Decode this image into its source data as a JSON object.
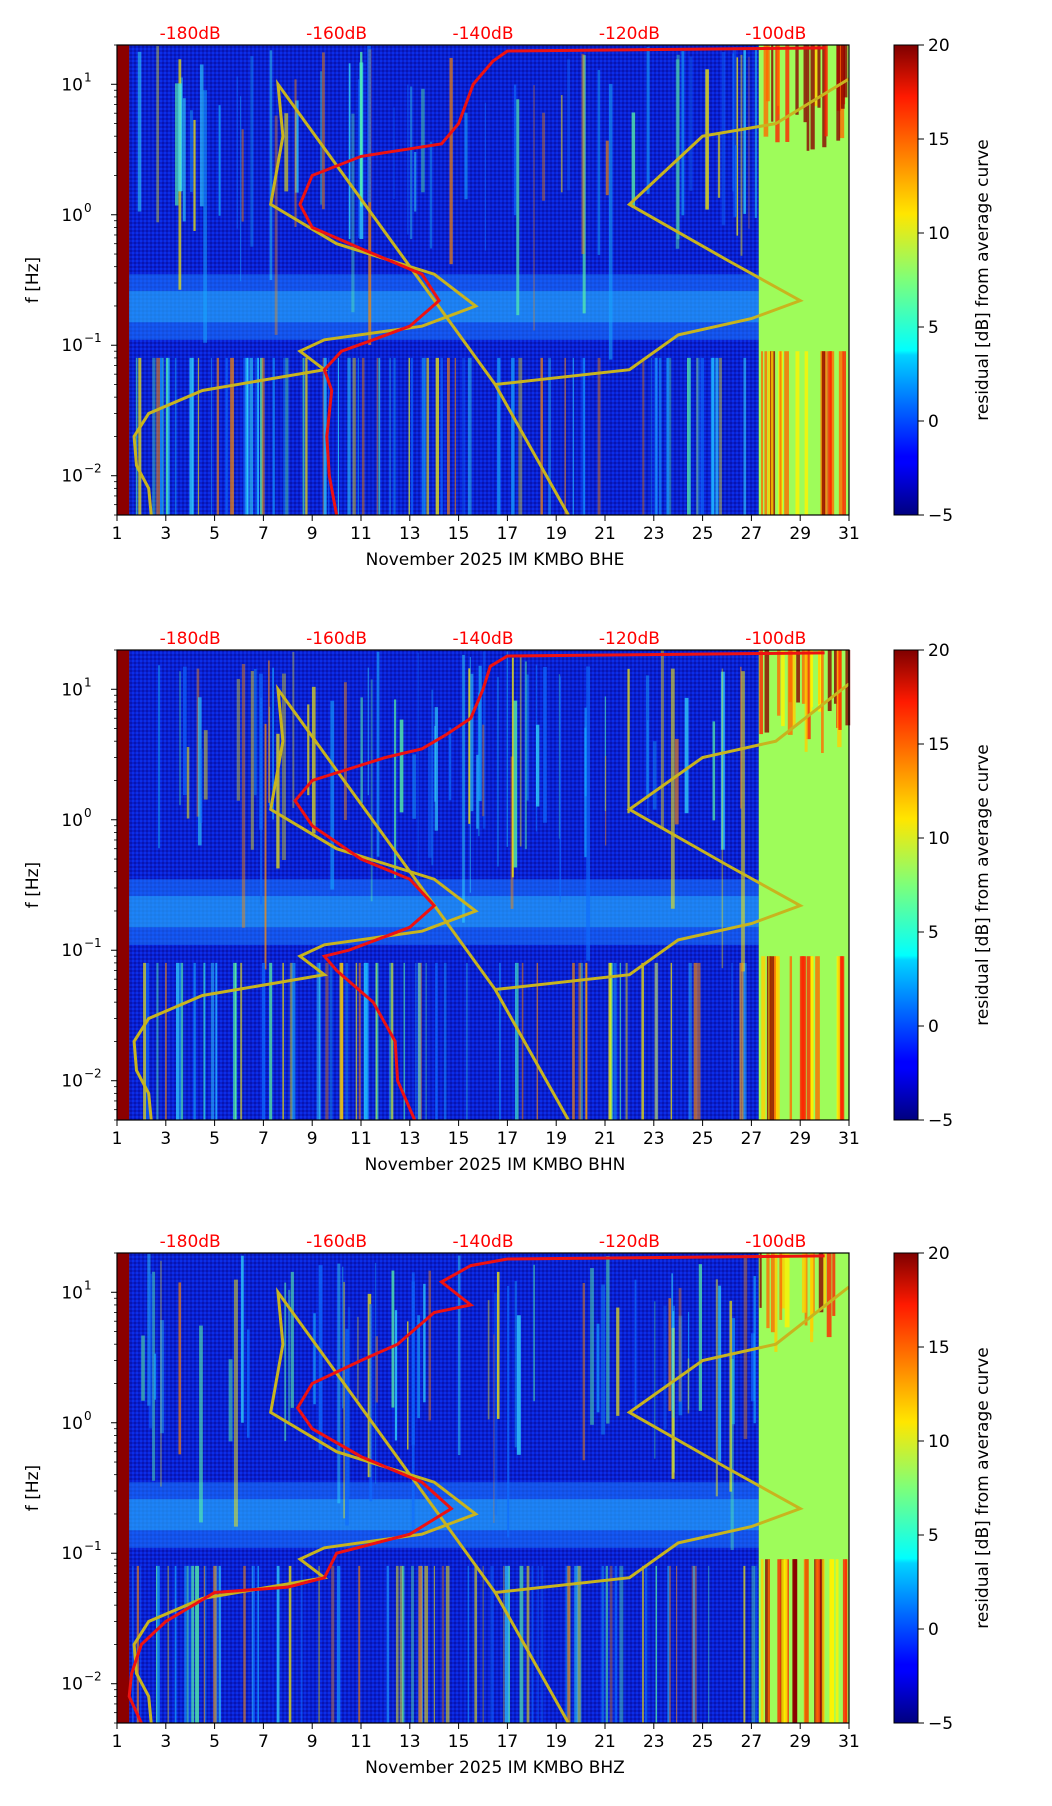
{
  "chart_data": [
    {
      "type": "heatmap",
      "channel": "BHE",
      "xlabel": "November 2025 IM KMBO  BHE",
      "ylabel": "f [Hz]",
      "x_ticks": [
        "1",
        "3",
        "5",
        "7",
        "9",
        "11",
        "13",
        "15",
        "17",
        "19",
        "21",
        "23",
        "25",
        "27",
        "29",
        "31"
      ],
      "xlim": [
        1,
        31
      ],
      "y_ticks": [
        {
          "base": "10",
          "exp": "−2",
          "value": 0.01
        },
        {
          "base": "10",
          "exp": "−1",
          "value": 0.1
        },
        {
          "base": "10",
          "exp": "0",
          "value": 1
        },
        {
          "base": "10",
          "exp": "1",
          "value": 10
        }
      ],
      "ylim": [
        0.005,
        20
      ],
      "db_scale_labels": [
        "-180dB",
        "-160dB",
        "-140dB",
        "-120dB",
        "-100dB"
      ],
      "db_scale_days": [
        4,
        10,
        16,
        22,
        28
      ],
      "colorbar": {
        "label": "residual [dB] from average curve",
        "ticks": [
          "−5",
          "0",
          "5",
          "10",
          "15",
          "20"
        ],
        "tick_values": [
          -5,
          0,
          5,
          10,
          15,
          20
        ],
        "range": [
          -5,
          20
        ]
      },
      "red_curve": [
        [
          10,
          0.005
        ],
        [
          9.7,
          0.01
        ],
        [
          9.6,
          0.02
        ],
        [
          9.8,
          0.045
        ],
        [
          9.5,
          0.065
        ],
        [
          10.2,
          0.09
        ],
        [
          11.5,
          0.11
        ],
        [
          13,
          0.14
        ],
        [
          14.2,
          0.22
        ],
        [
          13.5,
          0.35
        ],
        [
          11,
          0.55
        ],
        [
          9,
          0.8
        ],
        [
          8.5,
          1.2
        ],
        [
          9,
          2
        ],
        [
          11,
          2.8
        ],
        [
          13,
          3.2
        ],
        [
          14.3,
          3.5
        ],
        [
          15,
          5
        ],
        [
          15.6,
          10
        ],
        [
          16.4,
          15
        ],
        [
          17,
          18
        ],
        [
          30,
          19
        ]
      ],
      "yellow_curve": [
        [
          2.4,
          0.005
        ],
        [
          2.3,
          0.008
        ],
        [
          1.8,
          0.012
        ],
        [
          1.7,
          0.02
        ],
        [
          2.3,
          0.03
        ],
        [
          4.5,
          0.045
        ],
        [
          9.5,
          0.065
        ],
        [
          8.5,
          0.09
        ],
        [
          9.5,
          0.11
        ],
        [
          13.5,
          0.14
        ],
        [
          15.7,
          0.2
        ],
        [
          14,
          0.35
        ],
        [
          10,
          0.6
        ],
        [
          7.3,
          1.2
        ],
        [
          7.8,
          4
        ],
        [
          7.6,
          10
        ],
        [
          16.5,
          0.05
        ],
        [
          19.5,
          0.005
        ],
        [
          16.5,
          0.05
        ],
        [
          22,
          0.065
        ],
        [
          24,
          0.12
        ],
        [
          27,
          0.16
        ],
        [
          29,
          0.22
        ],
        [
          26,
          0.45
        ],
        [
          22,
          1.2
        ],
        [
          25,
          4
        ],
        [
          28,
          5
        ],
        [
          31,
          11
        ]
      ]
    },
    {
      "type": "heatmap",
      "channel": "BHN",
      "xlabel": "November 2025 IM KMBO  BHN",
      "ylabel": "f [Hz]",
      "x_ticks": [
        "1",
        "3",
        "5",
        "7",
        "9",
        "11",
        "13",
        "15",
        "17",
        "19",
        "21",
        "23",
        "25",
        "27",
        "29",
        "31"
      ],
      "xlim": [
        1,
        31
      ],
      "y_ticks": [
        {
          "base": "10",
          "exp": "−2",
          "value": 0.01
        },
        {
          "base": "10",
          "exp": "−1",
          "value": 0.1
        },
        {
          "base": "10",
          "exp": "0",
          "value": 1
        },
        {
          "base": "10",
          "exp": "1",
          "value": 10
        }
      ],
      "ylim": [
        0.005,
        20
      ],
      "db_scale_labels": [
        "-180dB",
        "-160dB",
        "-140dB",
        "-120dB",
        "-100dB"
      ],
      "db_scale_days": [
        4,
        10,
        16,
        22,
        28
      ],
      "colorbar": {
        "label": "residual [dB] from average curve",
        "ticks": [
          "−5",
          "0",
          "5",
          "10",
          "15",
          "20"
        ],
        "tick_values": [
          -5,
          0,
          5,
          10,
          15,
          20
        ],
        "range": [
          -5,
          20
        ]
      },
      "red_curve": [
        [
          13.2,
          0.005
        ],
        [
          12.5,
          0.01
        ],
        [
          12.4,
          0.02
        ],
        [
          11.5,
          0.04
        ],
        [
          10,
          0.07
        ],
        [
          9.5,
          0.09
        ],
        [
          10.5,
          0.1
        ],
        [
          13,
          0.15
        ],
        [
          14,
          0.22
        ],
        [
          13,
          0.35
        ],
        [
          11,
          0.5
        ],
        [
          9,
          0.9
        ],
        [
          8.3,
          1.4
        ],
        [
          9,
          2
        ],
        [
          12,
          3
        ],
        [
          13.5,
          3.5
        ],
        [
          14.5,
          4.5
        ],
        [
          15.5,
          6
        ],
        [
          16,
          10
        ],
        [
          16.3,
          15
        ],
        [
          17,
          18
        ],
        [
          30,
          19
        ]
      ],
      "yellow_curve": [
        [
          2.4,
          0.005
        ],
        [
          2.3,
          0.008
        ],
        [
          1.8,
          0.012
        ],
        [
          1.7,
          0.02
        ],
        [
          2.3,
          0.03
        ],
        [
          4.5,
          0.045
        ],
        [
          9.5,
          0.065
        ],
        [
          8.5,
          0.09
        ],
        [
          9.5,
          0.11
        ],
        [
          13.5,
          0.14
        ],
        [
          15.7,
          0.2
        ],
        [
          14,
          0.35
        ],
        [
          10,
          0.6
        ],
        [
          7.3,
          1.2
        ],
        [
          7.8,
          4
        ],
        [
          7.6,
          10
        ],
        [
          16.5,
          0.05
        ],
        [
          19.5,
          0.005
        ],
        [
          16.5,
          0.05
        ],
        [
          22,
          0.065
        ],
        [
          24,
          0.12
        ],
        [
          27,
          0.16
        ],
        [
          29,
          0.22
        ],
        [
          26,
          0.45
        ],
        [
          22,
          1.2
        ],
        [
          25,
          3
        ],
        [
          28,
          4
        ],
        [
          31,
          11
        ]
      ]
    },
    {
      "type": "heatmap",
      "channel": "BHZ",
      "xlabel": "November 2025 IM KMBO  BHZ",
      "ylabel": "f [Hz]",
      "x_ticks": [
        "1",
        "3",
        "5",
        "7",
        "9",
        "11",
        "13",
        "15",
        "17",
        "19",
        "21",
        "23",
        "25",
        "27",
        "29",
        "31"
      ],
      "xlim": [
        1,
        31
      ],
      "y_ticks": [
        {
          "base": "10",
          "exp": "−2",
          "value": 0.01
        },
        {
          "base": "10",
          "exp": "−1",
          "value": 0.1
        },
        {
          "base": "10",
          "exp": "0",
          "value": 1
        },
        {
          "base": "10",
          "exp": "1",
          "value": 10
        }
      ],
      "ylim": [
        0.005,
        20
      ],
      "db_scale_labels": [
        "-180dB",
        "-160dB",
        "-140dB",
        "-120dB",
        "-100dB"
      ],
      "db_scale_days": [
        4,
        10,
        16,
        22,
        28
      ],
      "colorbar": {
        "label": "residual [dB] from average curve",
        "ticks": [
          "−5",
          "0",
          "5",
          "10",
          "15",
          "20"
        ],
        "tick_values": [
          -5,
          0,
          5,
          10,
          15,
          20
        ],
        "range": [
          -5,
          20
        ]
      },
      "red_curve": [
        [
          2,
          0.005
        ],
        [
          1.5,
          0.008
        ],
        [
          1.6,
          0.012
        ],
        [
          2,
          0.02
        ],
        [
          3,
          0.03
        ],
        [
          5,
          0.05
        ],
        [
          8,
          0.055
        ],
        [
          9.5,
          0.065
        ],
        [
          10,
          0.1
        ],
        [
          13,
          0.14
        ],
        [
          14.7,
          0.22
        ],
        [
          13.5,
          0.35
        ],
        [
          11,
          0.55
        ],
        [
          9,
          0.9
        ],
        [
          8.4,
          1.3
        ],
        [
          9,
          2
        ],
        [
          11,
          3
        ],
        [
          12.5,
          4
        ],
        [
          14,
          7
        ],
        [
          15.5,
          8
        ],
        [
          14.3,
          12
        ],
        [
          15.5,
          16
        ],
        [
          17,
          18
        ],
        [
          30,
          19
        ]
      ],
      "yellow_curve": [
        [
          2.4,
          0.005
        ],
        [
          2.3,
          0.008
        ],
        [
          1.8,
          0.012
        ],
        [
          1.7,
          0.02
        ],
        [
          2.3,
          0.03
        ],
        [
          4.5,
          0.045
        ],
        [
          9.5,
          0.065
        ],
        [
          8.5,
          0.09
        ],
        [
          9.5,
          0.11
        ],
        [
          13.5,
          0.14
        ],
        [
          15.7,
          0.2
        ],
        [
          14,
          0.35
        ],
        [
          10,
          0.6
        ],
        [
          7.3,
          1.2
        ],
        [
          7.8,
          4
        ],
        [
          7.6,
          10
        ],
        [
          16.5,
          0.05
        ],
        [
          19.5,
          0.005
        ],
        [
          16.5,
          0.05
        ],
        [
          22,
          0.065
        ],
        [
          24,
          0.12
        ],
        [
          27,
          0.16
        ],
        [
          29,
          0.22
        ],
        [
          26,
          0.45
        ],
        [
          22,
          1.2
        ],
        [
          25,
          3
        ],
        [
          28,
          4
        ],
        [
          31,
          11
        ]
      ]
    }
  ]
}
